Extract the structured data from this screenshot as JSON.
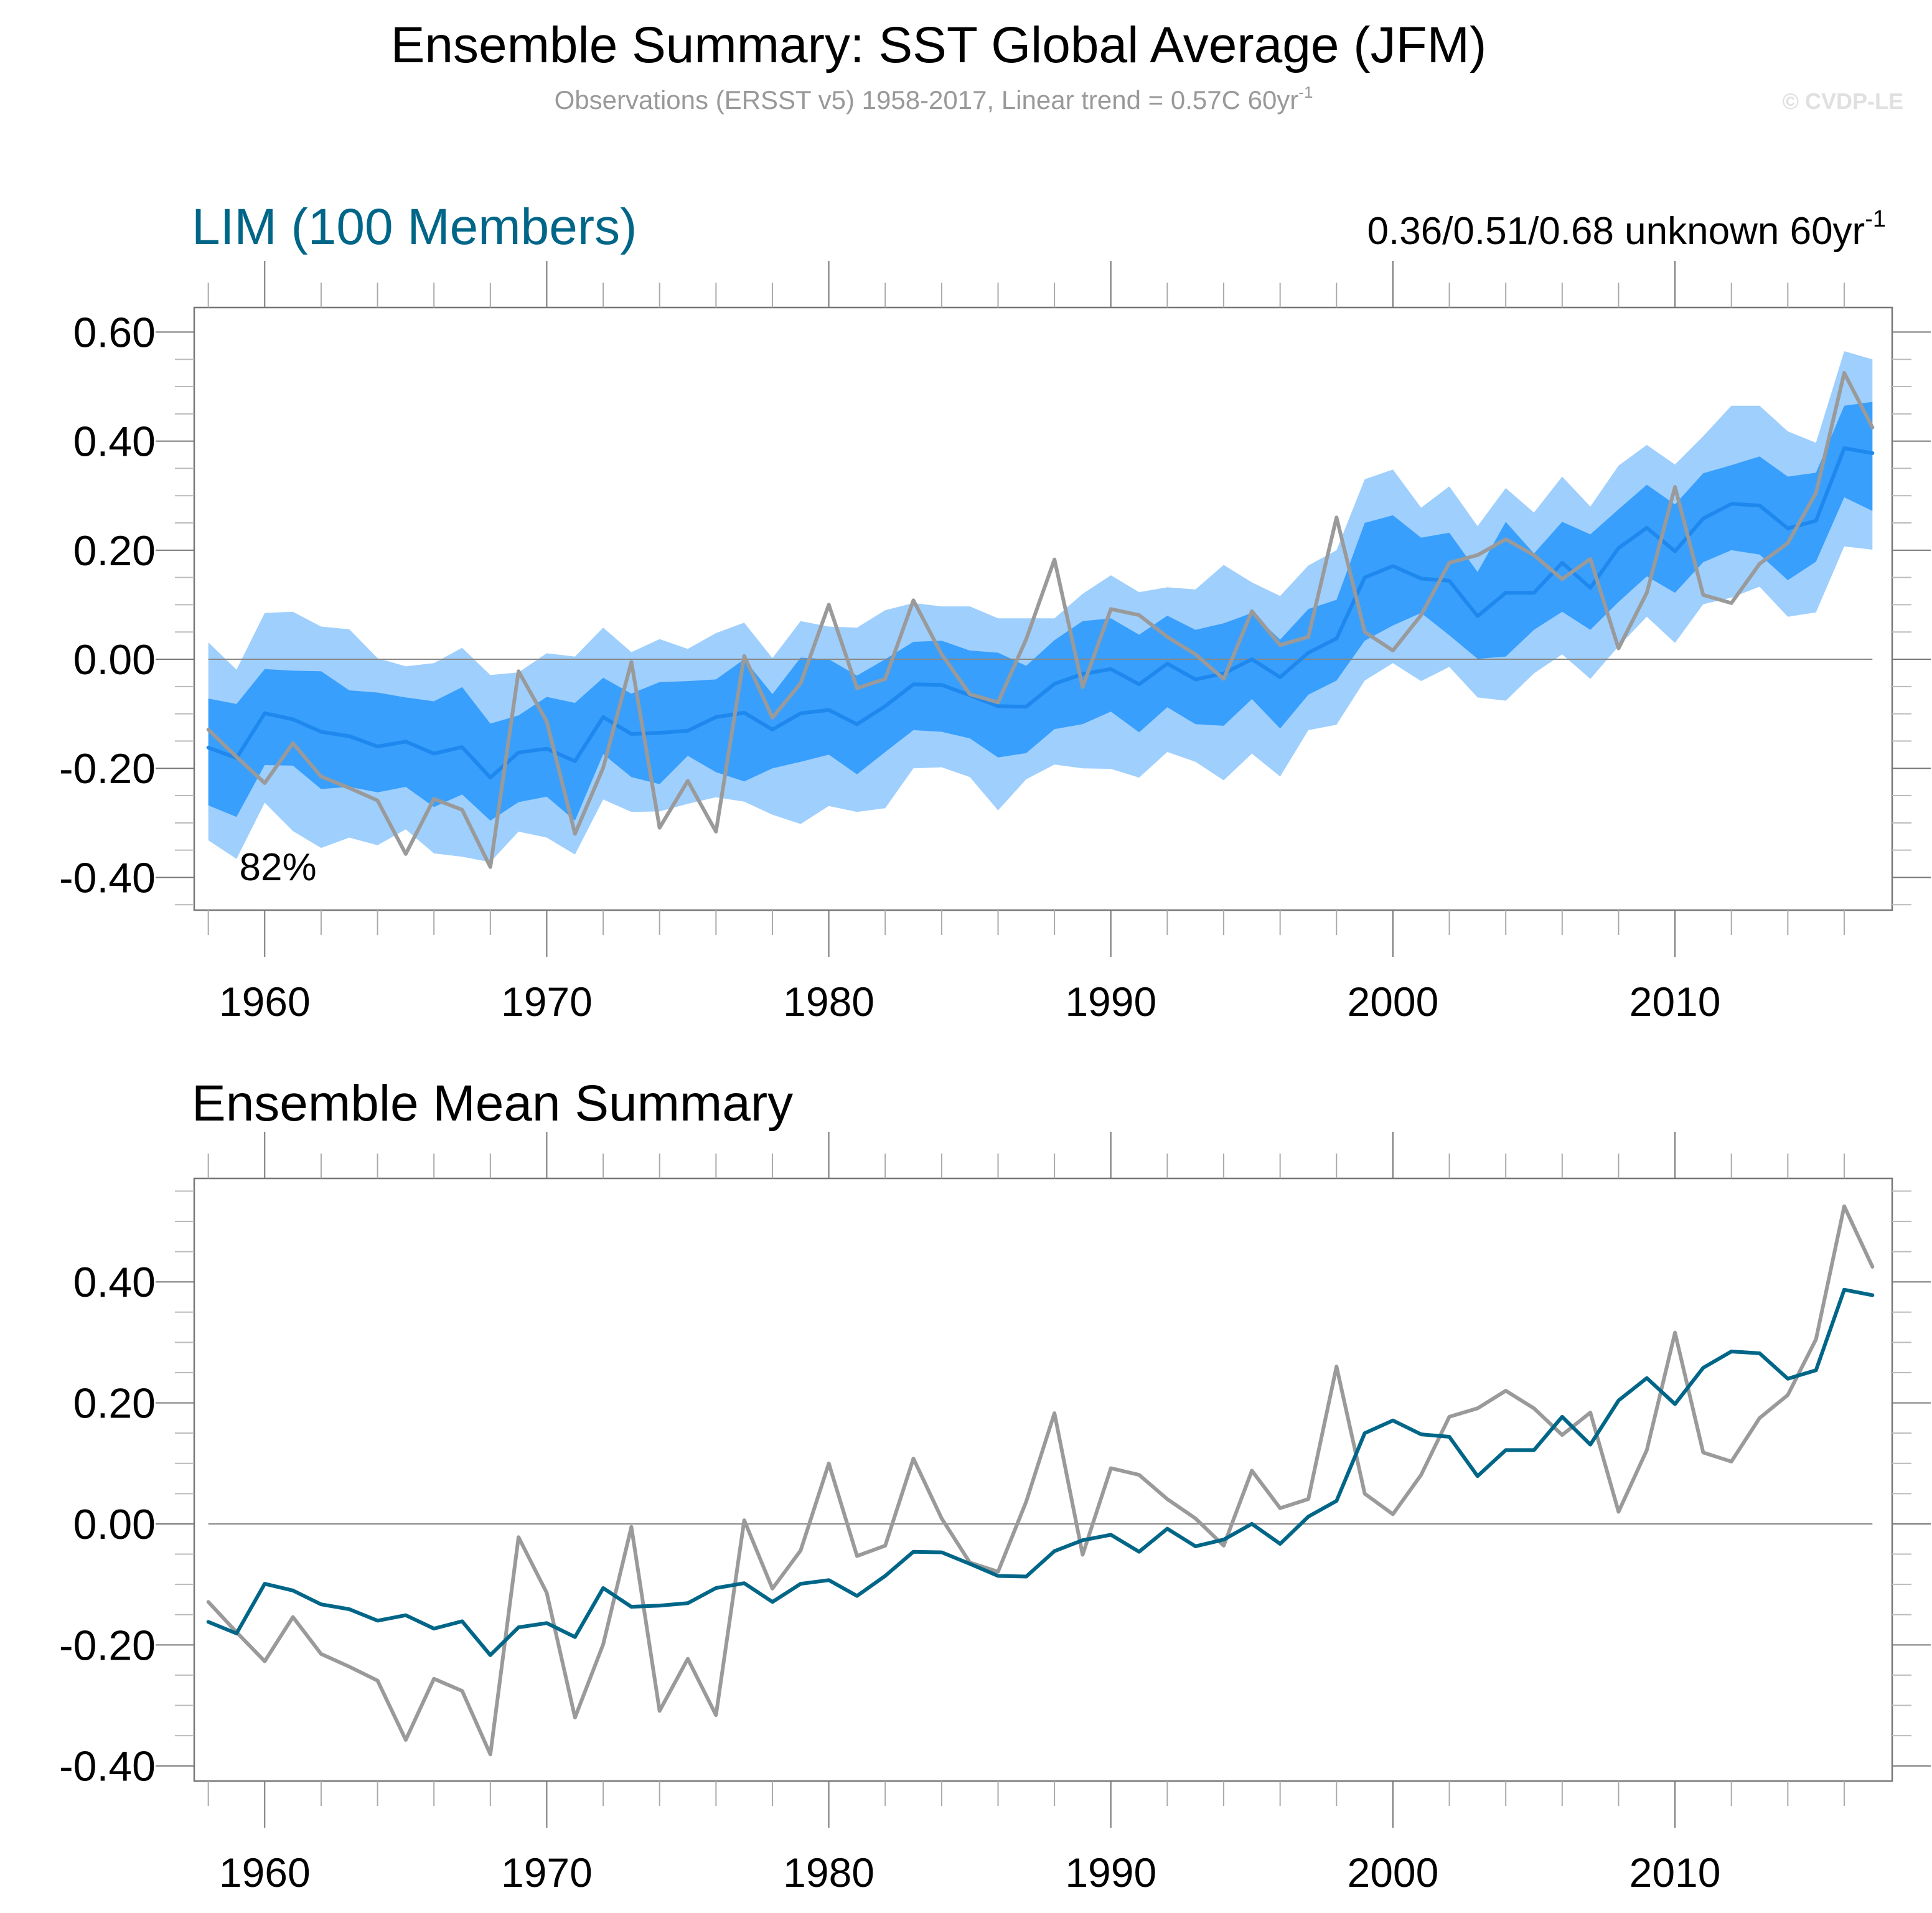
{
  "header": {
    "title": "Ensemble Summary: SST Global Average (JFM)",
    "subtitle": "Observations (ERSST v5) 1958-2017, Linear trend = 0.57C 60yr",
    "subtitle_sup": "-1",
    "watermark": "© CVDP-LE"
  },
  "colors": {
    "outer_band": "#9fcffd",
    "inner_band": "#389ffd",
    "ensemble_mean_top": "#1e88ee",
    "ensemble_mean_bottom": "#006688",
    "observations": "#9a9a9a",
    "panel_title": "#006688",
    "axis": "#777777"
  },
  "chart_data": [
    {
      "type": "area",
      "id": "top-panel",
      "title": "LIM (100 Members)",
      "trend_label": "0.36/0.51/0.68 unknown 60yr",
      "trend_label_sup": "-1",
      "annotation": "82%",
      "xlabel": "",
      "ylabel": "",
      "xlim": [
        1957.5,
        2017.7
      ],
      "ylim": [
        -0.46,
        0.645
      ],
      "yticks": [
        -0.4,
        -0.2,
        0.0,
        0.2,
        0.4,
        0.6
      ],
      "ytick_labels": [
        "-0.40",
        "-0.20",
        "0.00",
        "0.20",
        "0.40",
        "0.60"
      ],
      "xticks": [
        1960,
        1970,
        1980,
        1990,
        2000,
        2010
      ],
      "xtick_labels": [
        "1960",
        "1970",
        "1980",
        "1990",
        "2000",
        "2010"
      ],
      "zero_line": true,
      "x": [
        1958,
        1959,
        1960,
        1961,
        1962,
        1963,
        1964,
        1965,
        1966,
        1967,
        1968,
        1969,
        1970,
        1971,
        1972,
        1973,
        1974,
        1975,
        1976,
        1977,
        1978,
        1979,
        1980,
        1981,
        1982,
        1983,
        1984,
        1985,
        1986,
        1987,
        1988,
        1989,
        1990,
        1991,
        1992,
        1993,
        1994,
        1995,
        1996,
        1997,
        1998,
        1999,
        2000,
        2001,
        2002,
        2003,
        2004,
        2005,
        2006,
        2007,
        2008,
        2009,
        2010,
        2011,
        2012,
        2013,
        2014,
        2015,
        2016,
        2017
      ],
      "series": [
        {
          "name": "outer_upper",
          "values": [
            0.031,
            -0.019,
            0.085,
            0.087,
            0.06,
            0.055,
            0.002,
            -0.013,
            -0.007,
            0.021,
            -0.029,
            -0.024,
            0.011,
            0.005,
            0.058,
            0.013,
            0.037,
            0.019,
            0.048,
            0.067,
            0.002,
            0.07,
            0.06,
            0.058,
            0.09,
            0.103,
            0.097,
            0.097,
            0.075,
            0.075,
            0.075,
            0.12,
            0.154,
            0.123,
            0.132,
            0.128,
            0.173,
            0.141,
            0.116,
            0.172,
            0.2,
            0.33,
            0.348,
            0.278,
            0.317,
            0.244,
            0.314,
            0.269,
            0.335,
            0.28,
            0.355,
            0.393,
            0.357,
            0.409,
            0.465,
            0.465,
            0.418,
            0.397,
            0.565,
            0.55
          ]
        },
        {
          "name": "inner_upper",
          "values": [
            -0.072,
            -0.082,
            -0.018,
            -0.021,
            -0.022,
            -0.057,
            -0.061,
            -0.07,
            -0.077,
            -0.051,
            -0.118,
            -0.103,
            -0.069,
            -0.08,
            -0.034,
            -0.063,
            -0.042,
            -0.04,
            -0.037,
            0.0,
            -0.064,
            0.003,
            0.0,
            -0.03,
            0.0,
            0.032,
            0.034,
            0.016,
            0.012,
            -0.012,
            0.035,
            0.07,
            0.075,
            0.045,
            0.08,
            0.054,
            0.066,
            0.085,
            0.036,
            0.092,
            0.109,
            0.25,
            0.264,
            0.223,
            0.232,
            0.16,
            0.252,
            0.194,
            0.252,
            0.229,
            0.275,
            0.32,
            0.284,
            0.341,
            0.356,
            0.372,
            0.335,
            0.342,
            0.465,
            0.472
          ]
        },
        {
          "name": "inner_lower",
          "values": [
            -0.268,
            -0.289,
            -0.194,
            -0.195,
            -0.238,
            -0.234,
            -0.244,
            -0.234,
            -0.271,
            -0.248,
            -0.296,
            -0.262,
            -0.252,
            -0.296,
            -0.174,
            -0.216,
            -0.229,
            -0.177,
            -0.207,
            -0.224,
            -0.2,
            -0.188,
            -0.175,
            -0.211,
            -0.17,
            -0.13,
            -0.133,
            -0.145,
            -0.18,
            -0.172,
            -0.128,
            -0.119,
            -0.096,
            -0.134,
            -0.088,
            -0.119,
            -0.122,
            -0.073,
            -0.127,
            -0.065,
            -0.039,
            0.034,
            0.062,
            0.085,
            0.044,
            0.001,
            0.005,
            0.054,
            0.087,
            0.054,
            0.105,
            0.152,
            0.122,
            0.178,
            0.2,
            0.192,
            0.145,
            0.179,
            0.297,
            0.272
          ]
        },
        {
          "name": "outer_lower",
          "values": [
            -0.332,
            -0.366,
            -0.263,
            -0.315,
            -0.346,
            -0.327,
            -0.341,
            -0.312,
            -0.356,
            -0.362,
            -0.372,
            -0.316,
            -0.327,
            -0.358,
            -0.257,
            -0.28,
            -0.279,
            -0.265,
            -0.253,
            -0.261,
            -0.285,
            -0.302,
            -0.269,
            -0.28,
            -0.273,
            -0.2,
            -0.198,
            -0.216,
            -0.277,
            -0.22,
            -0.193,
            -0.2,
            -0.201,
            -0.217,
            -0.17,
            -0.188,
            -0.222,
            -0.173,
            -0.215,
            -0.13,
            -0.12,
            -0.039,
            -0.007,
            -0.04,
            -0.014,
            -0.07,
            -0.076,
            -0.026,
            0.009,
            -0.036,
            0.024,
            0.078,
            0.03,
            0.101,
            0.113,
            0.133,
            0.078,
            0.086,
            0.207,
            0.201
          ]
        },
        {
          "name": "ensemble_mean",
          "values": [
            -0.162,
            -0.181,
            -0.099,
            -0.11,
            -0.133,
            -0.141,
            -0.16,
            -0.151,
            -0.173,
            -0.161,
            -0.217,
            -0.171,
            -0.164,
            -0.187,
            -0.106,
            -0.137,
            -0.135,
            -0.131,
            -0.106,
            -0.098,
            -0.129,
            -0.099,
            -0.093,
            -0.119,
            -0.086,
            -0.046,
            -0.047,
            -0.066,
            -0.086,
            -0.087,
            -0.045,
            -0.027,
            -0.018,
            -0.046,
            -0.008,
            -0.037,
            -0.026,
            0.0,
            -0.033,
            0.012,
            0.038,
            0.15,
            0.171,
            0.148,
            0.144,
            0.079,
            0.122,
            0.122,
            0.177,
            0.131,
            0.204,
            0.241,
            0.198,
            0.258,
            0.285,
            0.282,
            0.24,
            0.254,
            0.387,
            0.378
          ]
        },
        {
          "name": "observations",
          "values": [
            -0.129,
            -0.179,
            -0.227,
            -0.154,
            -0.215,
            -0.236,
            -0.259,
            -0.357,
            -0.256,
            -0.276,
            -0.381,
            -0.022,
            -0.114,
            -0.32,
            -0.199,
            -0.005,
            -0.309,
            -0.223,
            -0.316,
            0.006,
            -0.107,
            -0.044,
            0.1,
            -0.053,
            -0.036,
            0.108,
            0.009,
            -0.064,
            -0.079,
            0.037,
            0.183,
            -0.051,
            0.092,
            0.081,
            0.041,
            0.009,
            -0.036,
            0.088,
            0.026,
            0.041,
            0.26,
            0.05,
            0.016,
            0.081,
            0.177,
            0.191,
            0.22,
            0.191,
            0.147,
            0.184,
            0.02,
            0.122,
            0.316,
            0.118,
            0.103,
            0.175,
            0.213,
            0.305,
            0.525,
            0.425
          ]
        }
      ]
    },
    {
      "type": "line",
      "id": "bottom-panel",
      "title": "Ensemble Mean Summary",
      "xlabel": "",
      "ylabel": "",
      "xlim": [
        1957.5,
        2017.7
      ],
      "ylim": [
        -0.425,
        0.571
      ],
      "yticks": [
        -0.4,
        -0.2,
        0.0,
        0.2,
        0.4
      ],
      "ytick_labels": [
        "-0.40",
        "-0.20",
        "0.00",
        "0.20",
        "0.40"
      ],
      "xticks": [
        1960,
        1970,
        1980,
        1990,
        2000,
        2010
      ],
      "xtick_labels": [
        "1960",
        "1970",
        "1980",
        "1990",
        "2000",
        "2010"
      ],
      "zero_line": true,
      "series_refs": [
        "ensemble_mean",
        "observations"
      ]
    }
  ]
}
